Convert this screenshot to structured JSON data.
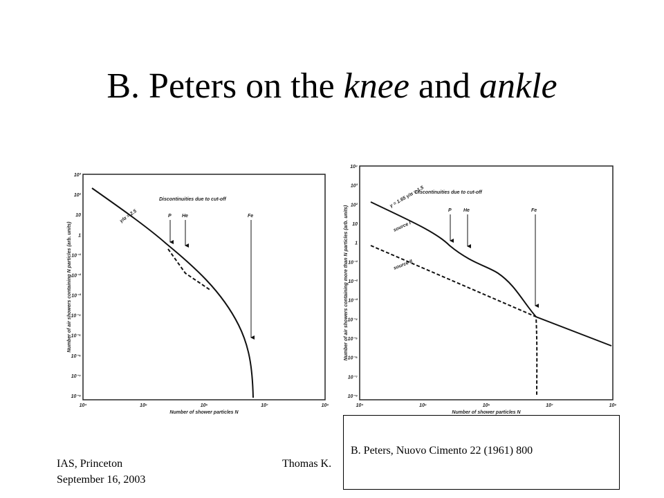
{
  "title": {
    "prefix": "B. Peters on the ",
    "em1": "knee",
    "mid": " and ",
    "em2": "ankle"
  },
  "figures": [
    {
      "annotation": "Discontinuities due to cut-off",
      "labels": [
        "P",
        "He",
        "Fe"
      ],
      "slope": "γ/α = 2.5",
      "x_axis_label": "Number of shower particles N",
      "y_axis_label": "Number of air showers containing N particles (arb. units)",
      "x_ticks": [
        "10⁴",
        "10⁵",
        "10⁶",
        "10⁷",
        "10⁸"
      ],
      "y_ticks": [
        "10³",
        "10²",
        "10",
        "1",
        "10⁻¹",
        "10⁻²",
        "10⁻³",
        "10⁻⁴",
        "10⁻⁵",
        "10⁻⁶",
        "10⁻⁷",
        "10⁻⁸"
      ]
    },
    {
      "annotation": "Discontinuities due to cut-off",
      "labels": [
        "P",
        "He",
        "Fe"
      ],
      "slope": "γ = 1.65  γ/α = 1.5",
      "x_axis_label": "Number of shower particles N",
      "y_axis_label": "Number of air showers containing more than N particles (arb. units)",
      "x_ticks": [
        "10⁴",
        "10⁵",
        "10⁶",
        "10⁷",
        "10⁸"
      ],
      "y_ticks": [
        "10⁴",
        "10³",
        "10²",
        "10",
        "1",
        "10⁻¹",
        "10⁻²",
        "10⁻³",
        "10⁻⁴",
        "10⁻⁵",
        "10⁻⁶",
        "10⁻⁷",
        "10⁻⁸"
      ],
      "sources": [
        "source I",
        "source II"
      ]
    }
  ],
  "citation": "B. Peters, Nuovo Cimento 22 (1961) 800",
  "footer": {
    "venue": "IAS, Princeton",
    "date": "September 16, 2003",
    "author": "Thomas K."
  }
}
